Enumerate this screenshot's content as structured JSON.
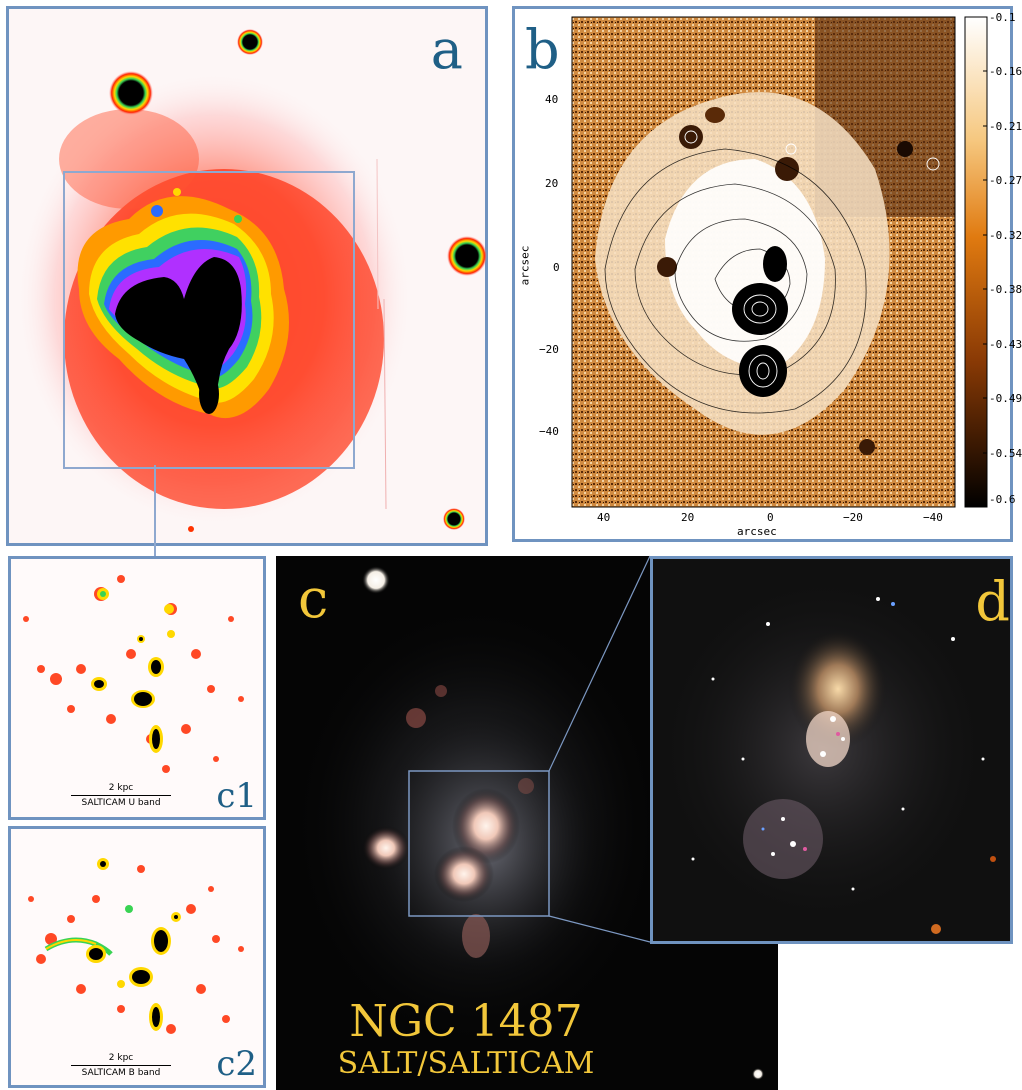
{
  "panels": {
    "a": {
      "label": "a"
    },
    "b": {
      "label": "b",
      "xlabel": "arcsec",
      "ylabel": "arcsec",
      "x_ticks": [
        "40",
        "20",
        "0",
        "−20",
        "−40"
      ],
      "y_ticks": [
        "40",
        "20",
        "0",
        "−20",
        "−40"
      ],
      "colorbar_ticks": [
        "-0.1",
        "-0.16",
        "-0.21",
        "-0.27",
        "-0.32",
        "-0.38",
        "-0.43",
        "-0.49",
        "-0.54",
        "-0.6"
      ]
    },
    "c1": {
      "label": "c1",
      "scale_text": "2 kpc",
      "band_text": "SALTICAM U band"
    },
    "c2": {
      "label": "c2",
      "scale_text": "2 kpc",
      "band_text": "SALTICAM B band"
    },
    "c": {
      "label": "c",
      "title": "NGC 1487",
      "subtitle": "SALT/SALTICAM"
    },
    "d": {
      "label": "d"
    }
  },
  "colors": {
    "border": "#6f93c0",
    "label_blue": "#1f5f86",
    "label_gold": "#f2c73a"
  }
}
